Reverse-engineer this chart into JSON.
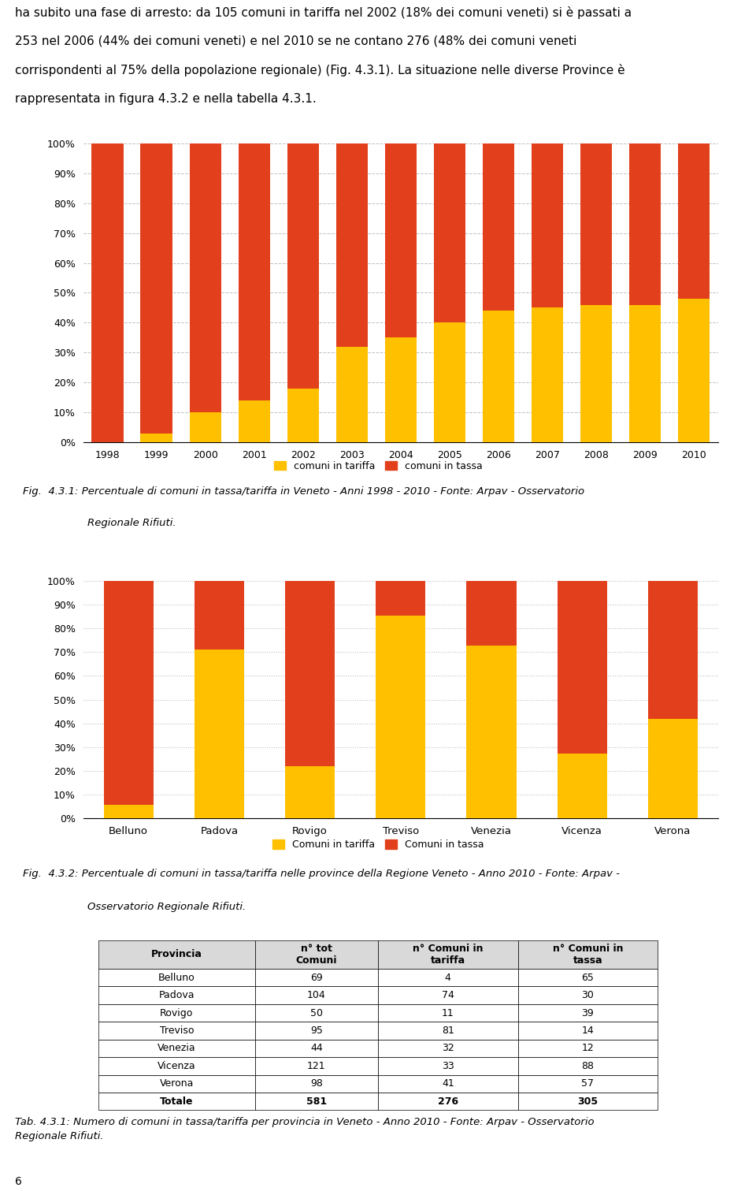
{
  "chart1_years": [
    1998,
    1999,
    2000,
    2001,
    2002,
    2003,
    2004,
    2005,
    2006,
    2007,
    2008,
    2009,
    2010
  ],
  "chart1_tariffa": [
    0,
    3,
    10,
    14,
    18,
    32,
    35,
    40,
    44,
    45,
    46,
    46,
    48
  ],
  "chart1_tassa": [
    100,
    97,
    90,
    86,
    82,
    68,
    65,
    60,
    56,
    55,
    54,
    54,
    52
  ],
  "chart2_provinces": [
    "Belluno",
    "Padova",
    "Rovigo",
    "Treviso",
    "Venezia",
    "Vicenza",
    "Verona"
  ],
  "chart2_tot": [
    69,
    104,
    50,
    95,
    44,
    121,
    98
  ],
  "chart2_tariffa_n": [
    4,
    74,
    11,
    81,
    32,
    33,
    41
  ],
  "chart2_tassa_n": [
    65,
    30,
    39,
    14,
    12,
    88,
    57
  ],
  "color_tariffa": "#FFC000",
  "color_tassa": "#E2401C",
  "legend1_tariffa": "comuni in tariffa",
  "legend1_tassa": "comuni in tassa",
  "legend2_tariffa": "Comuni in tariffa",
  "legend2_tassa": "Comuni in tassa",
  "table_headers": [
    "Provincia",
    "n° tot\nComuni",
    "n° Comuni in\ntariffa",
    "n° Comuni in\ntassa"
  ],
  "table_rows": [
    [
      "Belluno",
      "69",
      "4",
      "65"
    ],
    [
      "Padova",
      "104",
      "74",
      "30"
    ],
    [
      "Rovigo",
      "50",
      "11",
      "39"
    ],
    [
      "Treviso",
      "95",
      "81",
      "14"
    ],
    [
      "Venezia",
      "44",
      "32",
      "12"
    ],
    [
      "Vicenza",
      "121",
      "33",
      "88"
    ],
    [
      "Verona",
      "98",
      "41",
      "57"
    ],
    [
      "Totale",
      "581",
      "276",
      "305"
    ]
  ],
  "background_color": "#FFFFFF"
}
